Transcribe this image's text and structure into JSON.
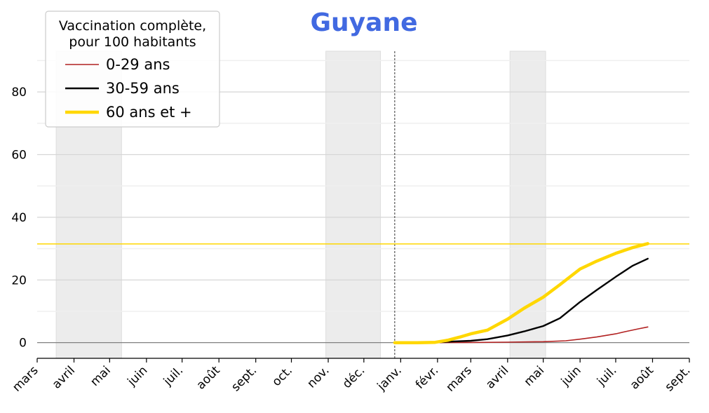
{
  "chart_data": {
    "type": "line",
    "title": "Guyane",
    "title_color": "#4169e1",
    "xlabel": "",
    "ylabel": "",
    "x_tick_labels": [
      "mars",
      "avril",
      "mai",
      "juin",
      "juil.",
      "août",
      "sept.",
      "oct.",
      "nov.",
      "déc.",
      "janv.",
      "févr.",
      "mars",
      "avril",
      "mai",
      "juin",
      "juil.",
      "août",
      "sept."
    ],
    "x_tick_dates": [
      "2020-03-01",
      "2020-04-01",
      "2020-05-01",
      "2020-06-01",
      "2020-07-01",
      "2020-08-01",
      "2020-09-01",
      "2020-10-01",
      "2020-11-01",
      "2020-12-01",
      "2021-01-01",
      "2021-02-01",
      "2021-03-01",
      "2021-04-01",
      "2021-05-01",
      "2021-06-01",
      "2021-07-01",
      "2021-08-01",
      "2021-09-01"
    ],
    "xlim": [
      "2020-03-01",
      "2021-09-01"
    ],
    "y_ticks": [
      0,
      20,
      40,
      60,
      80
    ],
    "ylim": [
      -5,
      93
    ],
    "grid": true,
    "shaded_periods": [
      [
        "2020-03-17",
        "2020-05-11"
      ],
      [
        "2020-10-30",
        "2020-12-15"
      ],
      [
        "2021-04-03",
        "2021-05-03"
      ]
    ],
    "vline_date": "2020-12-27",
    "hline_value": 31.5,
    "hline_color": "#ffd700",
    "legend": {
      "title": [
        "Vaccination complète,",
        "pour 100 habitants"
      ],
      "placement": "top-left"
    },
    "series": [
      {
        "name": "0-29 ans",
        "color": "#b22222",
        "points": [
          [
            "2021-01-21",
            0
          ],
          [
            "2021-03-01",
            0.05
          ],
          [
            "2021-04-01",
            0.15
          ],
          [
            "2021-05-01",
            0.3
          ],
          [
            "2021-05-20",
            0.6
          ],
          [
            "2021-06-01",
            1.1
          ],
          [
            "2021-06-15",
            1.8
          ],
          [
            "2021-07-01",
            2.8
          ],
          [
            "2021-07-10",
            3.6
          ],
          [
            "2021-07-20",
            4.4
          ],
          [
            "2021-07-28",
            5.0
          ]
        ]
      },
      {
        "name": "30-59 ans",
        "color": "#000000",
        "points": [
          [
            "2021-02-01",
            0.1
          ],
          [
            "2021-02-15",
            0.4
          ],
          [
            "2021-03-01",
            0.6
          ],
          [
            "2021-03-15",
            1.1
          ],
          [
            "2021-04-01",
            2.3
          ],
          [
            "2021-04-15",
            3.6
          ],
          [
            "2021-05-01",
            5.3
          ],
          [
            "2021-05-15",
            7.8
          ],
          [
            "2021-06-01",
            13.0
          ],
          [
            "2021-06-15",
            16.8
          ],
          [
            "2021-07-01",
            21.0
          ],
          [
            "2021-07-15",
            24.5
          ],
          [
            "2021-07-28",
            26.8
          ]
        ]
      },
      {
        "name": "60 ans et +",
        "color": "#ffd700",
        "points": [
          [
            "2020-12-27",
            0
          ],
          [
            "2021-01-15",
            0
          ],
          [
            "2021-01-30",
            0.1
          ],
          [
            "2021-02-10",
            0.8
          ],
          [
            "2021-02-20",
            1.8
          ],
          [
            "2021-03-01",
            2.8
          ],
          [
            "2021-03-15",
            4.0
          ],
          [
            "2021-04-01",
            7.5
          ],
          [
            "2021-04-15",
            11.0
          ],
          [
            "2021-05-01",
            14.5
          ],
          [
            "2021-05-15",
            18.5
          ],
          [
            "2021-06-01",
            23.5
          ],
          [
            "2021-06-15",
            26.0
          ],
          [
            "2021-07-01",
            28.5
          ],
          [
            "2021-07-15",
            30.3
          ],
          [
            "2021-07-28",
            31.6
          ]
        ]
      }
    ]
  }
}
